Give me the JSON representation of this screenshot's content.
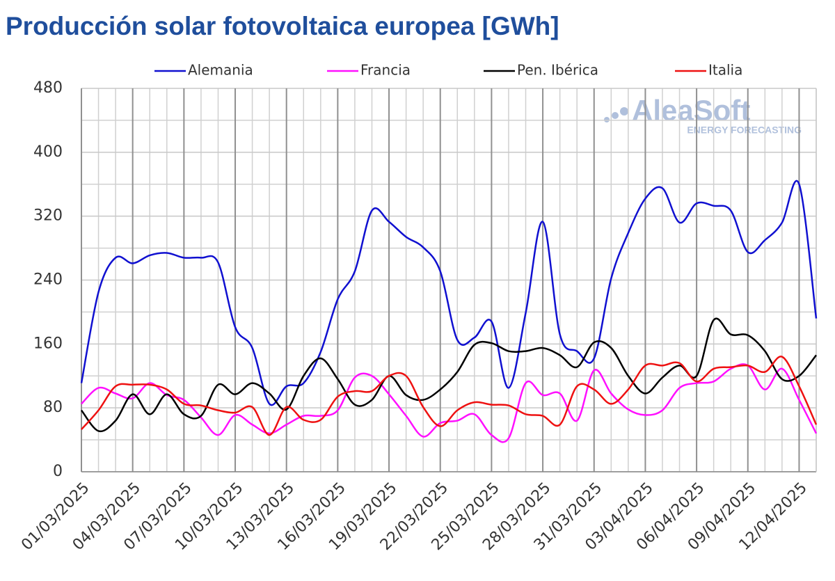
{
  "chart_data": {
    "type": "line",
    "title": "Producción solar fotovoltaica europea [GWh]",
    "watermark": {
      "brand": "AleaSoft",
      "tagline": "ENERGY FORECASTING"
    },
    "categories": [
      "01/03/2025",
      null,
      null,
      "04/03/2025",
      null,
      null,
      "07/03/2025",
      null,
      null,
      "10/03/2025",
      null,
      null,
      "13/03/2025",
      null,
      null,
      "16/03/2025",
      null,
      null,
      "19/03/2025",
      null,
      null,
      "22/03/2025",
      null,
      null,
      "25/03/2025",
      null,
      null,
      "28/03/2025",
      null,
      null,
      "31/03/2025",
      null,
      null,
      "03/04/2025",
      null,
      null,
      "06/04/2025",
      null,
      null,
      "09/04/2025",
      null,
      null,
      "12/04/2025",
      null
    ],
    "series": [
      {
        "name": "Alemania",
        "color": "#1010d0",
        "values": [
          111,
          225,
          268,
          261,
          271,
          274,
          268,
          268,
          262,
          181,
          155,
          85,
          107,
          111,
          150,
          216,
          251,
          327,
          313,
          294,
          281,
          251,
          165,
          168,
          188,
          105,
          199,
          313,
          172,
          151,
          142,
          242,
          299,
          342,
          355,
          312,
          336,
          333,
          327,
          275,
          290,
          312,
          360,
          192
        ]
      },
      {
        "name": "Francia",
        "color": "#ff10ff",
        "values": [
          85,
          105,
          98,
          92,
          111,
          96,
          90,
          68,
          46,
          71,
          59,
          48,
          59,
          70,
          70,
          77,
          118,
          120,
          97,
          70,
          44,
          61,
          64,
          72,
          46,
          42,
          111,
          96,
          98,
          64,
          127,
          98,
          78,
          71,
          77,
          105,
          111,
          113,
          129,
          133,
          103,
          129,
          90,
          48
        ]
      },
      {
        "name": "Pen. Ibérica",
        "color": "#000000",
        "values": [
          77,
          51,
          64,
          97,
          72,
          97,
          72,
          70,
          109,
          97,
          111,
          98,
          78,
          120,
          142,
          116,
          84,
          90,
          120,
          96,
          90,
          103,
          125,
          159,
          161,
          151,
          151,
          155,
          146,
          131,
          162,
          155,
          120,
          98,
          118,
          133,
          120,
          190,
          172,
          171,
          151,
          116,
          120,
          146
        ]
      },
      {
        "name": "Italia",
        "color": "#ee1111",
        "values": [
          53,
          77,
          107,
          109,
          109,
          103,
          85,
          83,
          77,
          74,
          81,
          46,
          81,
          65,
          65,
          94,
          101,
          101,
          120,
          120,
          81,
          57,
          77,
          87,
          84,
          83,
          72,
          70,
          59,
          107,
          103,
          85,
          103,
          133,
          133,
          136,
          113,
          129,
          131,
          133,
          125,
          144,
          107,
          59
        ]
      }
    ],
    "ylim": [
      0,
      480
    ],
    "yticks": [
      0,
      80,
      160,
      240,
      320,
      400,
      480
    ],
    "grid": true,
    "legend": "top"
  }
}
